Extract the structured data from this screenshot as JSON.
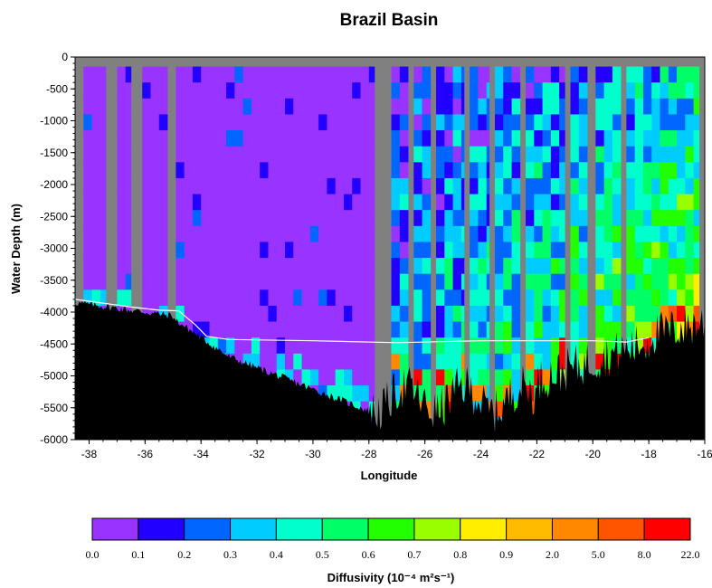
{
  "chart_data": {
    "type": "heatmap",
    "title": "Brazil Basin",
    "xlabel": "Longitude",
    "ylabel": "Water Depth (m)",
    "xlim": [
      -38.5,
      -16
    ],
    "ylim": [
      -6000,
      0
    ],
    "x_ticks": [
      "-38",
      "-36",
      "-34",
      "-32",
      "-30",
      "-28",
      "-26",
      "-24",
      "-22",
      "-20",
      "-18",
      "-16"
    ],
    "x_tick_values": [
      -38,
      -36,
      -34,
      -32,
      -30,
      -28,
      -26,
      -24,
      -22,
      -20,
      -18,
      -16
    ],
    "y_ticks": [
      "0",
      "-500",
      "-1000",
      "-1500",
      "-2000",
      "-2500",
      "-3000",
      "-3500",
      "-4000",
      "-4500",
      "-5000",
      "-5500",
      "-6000"
    ],
    "y_tick_values": [
      0,
      -500,
      -1000,
      -1500,
      -2000,
      -2500,
      -3000,
      -3500,
      -4000,
      -4500,
      -5000,
      -5500,
      -6000
    ],
    "colorbar": {
      "label": "Diffusivity (10⁻⁴ m²s⁻¹)",
      "bounds": [
        "0.0",
        "0.1",
        "0.2",
        "0.3",
        "0.4",
        "0.5",
        "0.6",
        "0.7",
        "0.8",
        "0.9",
        "2.0",
        "5.0",
        "8.0",
        "22.0"
      ],
      "colors": [
        "#9933ff",
        "#2200ff",
        "#0066ff",
        "#00ccff",
        "#00ffcc",
        "#00ff66",
        "#22ff00",
        "#99ff00",
        "#ffee00",
        "#ffbb00",
        "#ff8800",
        "#ff5500",
        "#ff0000"
      ]
    },
    "no_data_color": "#808080",
    "bathymetry_color": "#000000",
    "contour_color": "#ffffff",
    "grid": false
  }
}
